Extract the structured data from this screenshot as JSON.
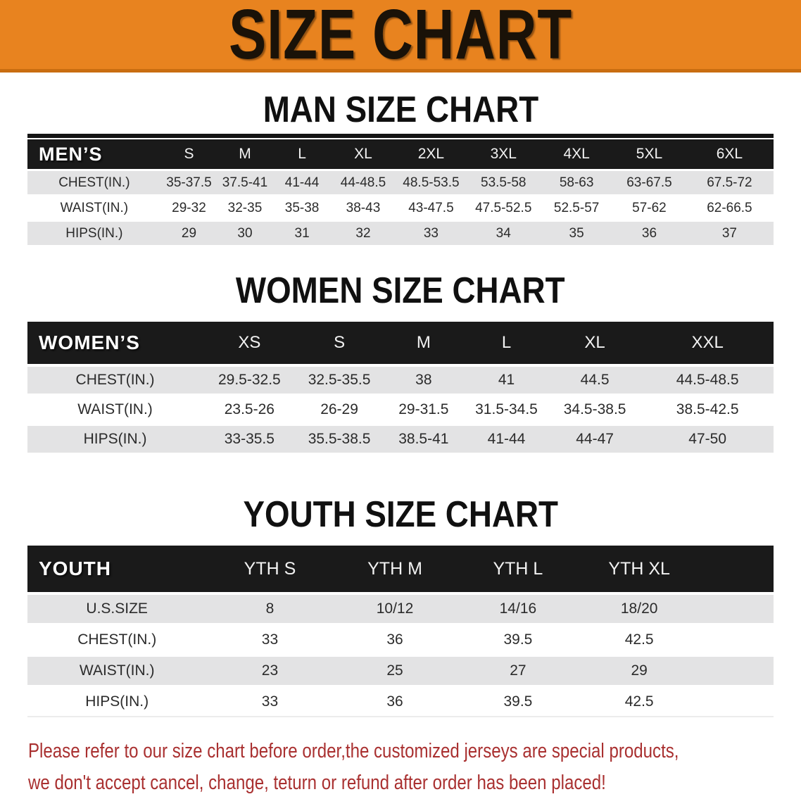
{
  "banner": {
    "title": "SIZE CHART"
  },
  "sections": {
    "man": {
      "heading": "MAN SIZE CHART"
    },
    "women": {
      "heading": "WOMEN SIZE CHART"
    },
    "youth": {
      "heading": "YOUTH SIZE CHART"
    }
  },
  "tables": {
    "man": {
      "header": {
        "label": "MEN’S",
        "sizes": [
          "S",
          "M",
          "L",
          "XL",
          "2XL",
          "3XL",
          "4XL",
          "5XL",
          "6XL"
        ]
      },
      "rows": [
        {
          "label": "CHEST(IN.)",
          "values": [
            "35-37.5",
            "37.5-41",
            "41-44",
            "44-48.5",
            "48.5-53.5",
            "53.5-58",
            "58-63",
            "63-67.5",
            "67.5-72"
          ]
        },
        {
          "label": "WAIST(IN.)",
          "values": [
            "29-32",
            "32-35",
            "35-38",
            "38-43",
            "43-47.5",
            "47.5-52.5",
            "52.5-57",
            "57-62",
            "62-66.5"
          ]
        },
        {
          "label": "HIPS(IN.)",
          "values": [
            "29",
            "30",
            "31",
            "32",
            "33",
            "34",
            "35",
            "36",
            "37"
          ]
        }
      ]
    },
    "women": {
      "header": {
        "label": "WOMEN’S",
        "sizes": [
          "XS",
          "S",
          "M",
          "L",
          "XL",
          "XXL"
        ]
      },
      "rows": [
        {
          "label": "CHEST(IN.)",
          "values": [
            "29.5-32.5",
            "32.5-35.5",
            "38",
            "41",
            "44.5",
            "44.5-48.5"
          ]
        },
        {
          "label": "WAIST(IN.)",
          "values": [
            "23.5-26",
            "26-29",
            "29-31.5",
            "31.5-34.5",
            "34.5-38.5",
            "38.5-42.5"
          ]
        },
        {
          "label": "HIPS(IN.)",
          "values": [
            "33-35.5",
            "35.5-38.5",
            "38.5-41",
            "41-44",
            "44-47",
            "47-50"
          ]
        }
      ]
    },
    "youth": {
      "header": {
        "label": "YOUTH",
        "sizes": [
          "YTH S",
          "YTH M",
          "YTH L",
          "YTH XL"
        ]
      },
      "rows": [
        {
          "label": "U.S.SIZE",
          "values": [
            "8",
            "10/12",
            "14/16",
            "18/20"
          ]
        },
        {
          "label": "CHEST(IN.)",
          "values": [
            "33",
            "36",
            "39.5",
            "42.5"
          ]
        },
        {
          "label": "WAIST(IN.)",
          "values": [
            "23",
            "25",
            "27",
            "29"
          ]
        },
        {
          "label": "HIPS(IN.)",
          "values": [
            "33",
            "36",
            "39.5",
            "42.5"
          ]
        }
      ]
    }
  },
  "disclaimer": {
    "line1": "Please refer to our size chart before order,the customized jerseys are special products,",
    "line2": "we don't accept cancel, change, teturn or refund after order has been placed!"
  },
  "colors": {
    "banner_bg": "#e8831f",
    "banner_edge": "#c96d10",
    "table_header_bg": "#1a1a1a",
    "row_alt_bg": "#e3e3e4",
    "disclaimer_red": "#a93030"
  }
}
